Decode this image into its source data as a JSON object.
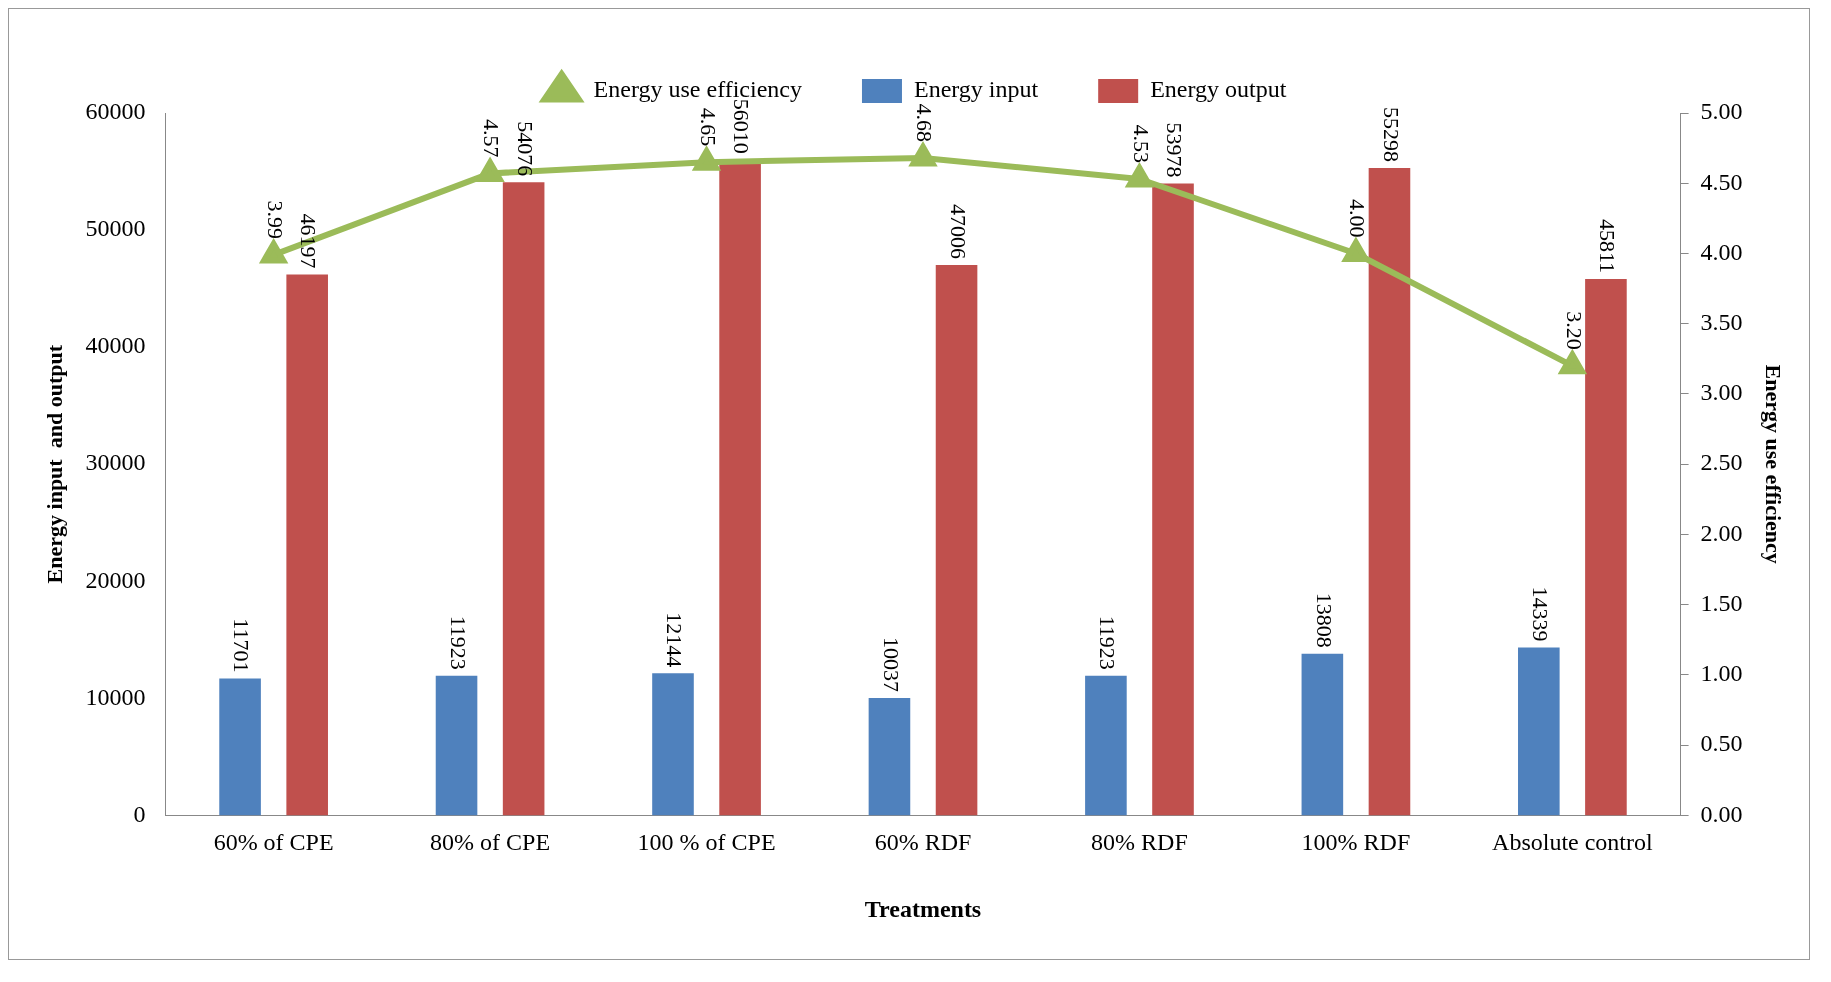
{
  "chart_data": {
    "type": "bar",
    "xlabel": "Treatments",
    "ylabel": "Energy input  and output",
    "y2label": "Energy use efficiency",
    "categories": [
      "60% of CPE",
      "80% of CPE",
      "100 % of CPE",
      "60% RDF",
      "80% RDF",
      "100% RDF",
      "Absolute control"
    ],
    "series": [
      {
        "name": "Energy input",
        "color": "#4f81bd",
        "values": [
          11701,
          11923,
          12144,
          10037,
          11923,
          13808,
          14339
        ],
        "value_labels": [
          "11701",
          "11923",
          "12144",
          "10037",
          "11923",
          "13808",
          "14339"
        ]
      },
      {
        "name": "Energy output",
        "color": "#c0504d",
        "values": [
          46197,
          54076,
          56010,
          47006,
          53978,
          55298,
          45811
        ],
        "value_labels": [
          "46197",
          "54076",
          "56010",
          "47006",
          "53978",
          "55298",
          "45811"
        ]
      },
      {
        "name": "Energy use efficiency",
        "type": "line",
        "axis": "y2",
        "color": "#9bbb59",
        "marker": "triangle",
        "values": [
          3.99,
          4.57,
          4.65,
          4.68,
          4.53,
          4.0,
          3.2
        ],
        "value_labels": [
          "3.99",
          "4.57",
          "4.65",
          "4.68",
          "4.53",
          "4.00",
          "3.20"
        ]
      }
    ],
    "ylim": [
      0,
      60000
    ],
    "yticks": [
      0,
      10000,
      20000,
      30000,
      40000,
      50000,
      60000
    ],
    "y2lim": [
      0,
      5
    ],
    "y2ticks": [
      {
        "value": 0,
        "label": "0.00"
      },
      {
        "value": 0.5,
        "label": "0.50"
      },
      {
        "value": 1,
        "label": "1.00"
      },
      {
        "value": 1.5,
        "label": "1.50"
      },
      {
        "value": 2,
        "label": "2.00"
      },
      {
        "value": 2.5,
        "label": "2.50"
      },
      {
        "value": 3,
        "label": "3.00"
      },
      {
        "value": 3.5,
        "label": "3.50"
      },
      {
        "value": 4,
        "label": "4.00"
      },
      {
        "value": 4.5,
        "label": "4.50"
      },
      {
        "value": 5,
        "label": "5.00"
      }
    ],
    "grid": false,
    "legend": "top"
  }
}
